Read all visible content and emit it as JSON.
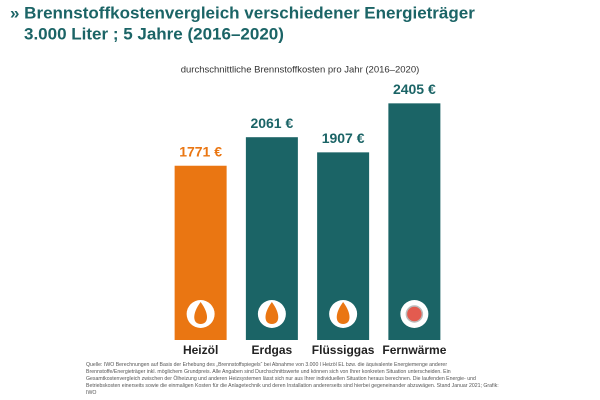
{
  "chart_data": {
    "type": "bar",
    "title": [
      "» Brennstoffkostenvergleich verschiedener Energieträger",
      "3.000 Liter ; 5 Jahre (2016–2020)"
    ],
    "subtitle": "durchschnittliche Brennstoffkosten pro Jahr (2016–2020)",
    "categories": [
      "Heizöl",
      "Erdgas",
      "Flüssiggas",
      "Fernwärme"
    ],
    "values": [
      1771,
      2061,
      1907,
      2405
    ],
    "value_labels": [
      "1771 €",
      "2061 €",
      "1907 €",
      "2405 €"
    ],
    "colors": [
      "#ea7612",
      "#1b6466",
      "#1b6466",
      "#1b6466"
    ],
    "ylim": [
      0,
      2500
    ],
    "note": "Quelle: IWO Berechnungen auf Basis der Erhebung des „Brennstoffspiegels“ bei Abnahme von 3.000 l Heizöl EL bzw. die äquivalente Energiemenge anderer Brennstoffe/Energieträger inkl. möglichem Grundpreis. Alle Angaben sind Durchschnittswerte und können sich von Ihrer konkreten Situation unterscheiden. Ein Gesamtkostenvergleich zwischen der Ölheizung und anderen Heizsystemen lässt sich nur aus Ihrer individuellen Situation heraus berechnen. Die laufenden Energie- und Betriebskosten einerseits sowie die einmaligen Kosten für die Anlagetechnik und deren Installation andererseits sind hierbei gegeneinander abzuwägen. Stand Januar 2021; Grafik: IWO"
  }
}
